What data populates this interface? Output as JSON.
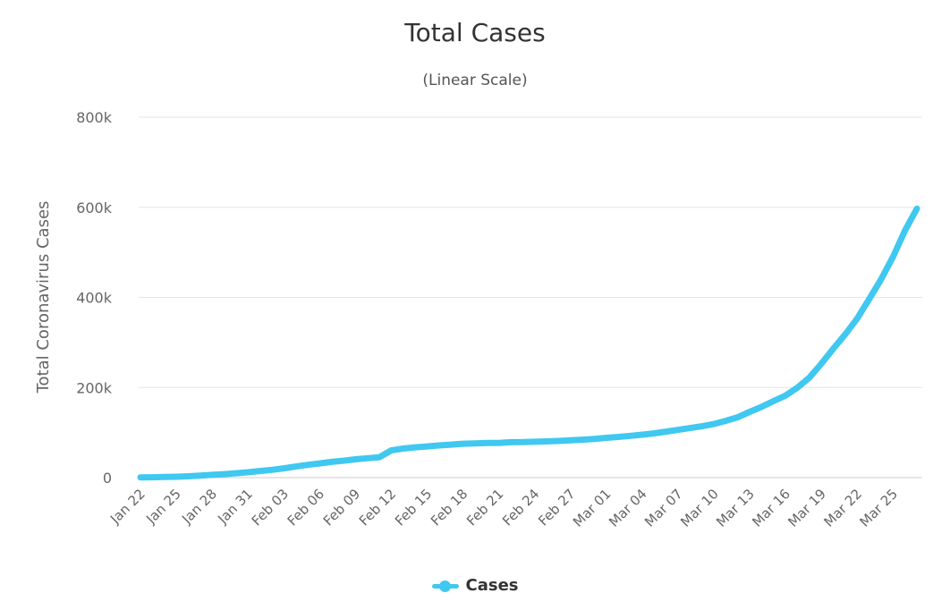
{
  "chart_data": {
    "type": "line",
    "title": "Total Cases",
    "subtitle": "(Linear Scale)",
    "ylabel": "Total Coronavirus Cases",
    "xlabel": "",
    "ylim": [
      0,
      800000
    ],
    "y_ticks": [
      0,
      200000,
      400000,
      600000,
      800000
    ],
    "y_tick_labels": [
      "0",
      "200k",
      "400k",
      "600k",
      "800k"
    ],
    "x_tick_labels": [
      "Jan 22",
      "Jan 25",
      "Jan 28",
      "Jan 31",
      "Feb 03",
      "Feb 06",
      "Feb 09",
      "Feb 12",
      "Feb 15",
      "Feb 18",
      "Feb 21",
      "Feb 24",
      "Feb 27",
      "Mar 01",
      "Mar 04",
      "Mar 07",
      "Mar 10",
      "Mar 13",
      "Mar 16",
      "Mar 19",
      "Mar 22",
      "Mar 25"
    ],
    "grid": true,
    "legend_position": "bottom-center",
    "series_color": "#40c8f0",
    "x": [
      "Jan 22",
      "Jan 23",
      "Jan 24",
      "Jan 25",
      "Jan 26",
      "Jan 27",
      "Jan 28",
      "Jan 29",
      "Jan 30",
      "Jan 31",
      "Feb 01",
      "Feb 02",
      "Feb 03",
      "Feb 04",
      "Feb 05",
      "Feb 06",
      "Feb 07",
      "Feb 08",
      "Feb 09",
      "Feb 10",
      "Feb 11",
      "Feb 12",
      "Feb 13",
      "Feb 14",
      "Feb 15",
      "Feb 16",
      "Feb 17",
      "Feb 18",
      "Feb 19",
      "Feb 20",
      "Feb 21",
      "Feb 22",
      "Feb 23",
      "Feb 24",
      "Feb 25",
      "Feb 26",
      "Feb 27",
      "Feb 28",
      "Feb 29",
      "Mar 01",
      "Mar 02",
      "Mar 03",
      "Mar 04",
      "Mar 05",
      "Mar 06",
      "Mar 07",
      "Mar 08",
      "Mar 09",
      "Mar 10",
      "Mar 11",
      "Mar 12",
      "Mar 13",
      "Mar 14",
      "Mar 15",
      "Mar 16",
      "Mar 17",
      "Mar 18",
      "Mar 19",
      "Mar 20",
      "Mar 21",
      "Mar 22",
      "Mar 23",
      "Mar 24",
      "Mar 25",
      "Mar 26",
      "Mar 27"
    ],
    "series": [
      {
        "name": "Cases",
        "values": [
          600,
          800,
          1300,
          2000,
          2900,
          4500,
          6100,
          7800,
          9800,
          11900,
          14600,
          17300,
          20600,
          24600,
          28300,
          31500,
          34900,
          37600,
          40600,
          43100,
          45200,
          60400,
          64600,
          67300,
          69300,
          71400,
          73300,
          75200,
          75800,
          76800,
          77100,
          78600,
          78900,
          79600,
          80400,
          81400,
          82700,
          84100,
          86000,
          88400,
          90300,
          92800,
          95300,
          98200,
          102000,
          106000,
          110000,
          114000,
          119000,
          126000,
          134000,
          146000,
          157000,
          170000,
          182000,
          200000,
          222000,
          253000,
          286000,
          318000,
          353000,
          396000,
          440000,
          490000,
          548000,
          597000
        ]
      }
    ]
  }
}
